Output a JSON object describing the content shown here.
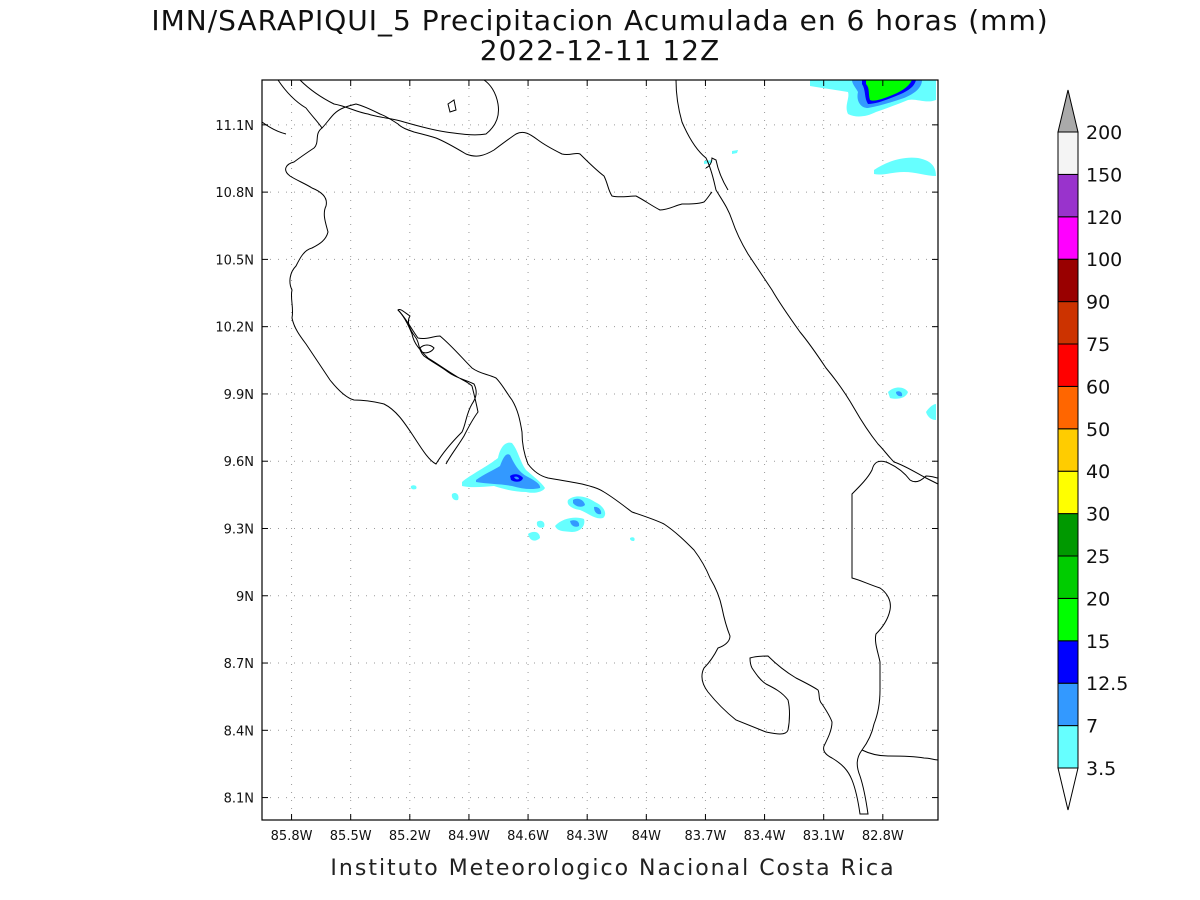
{
  "title": {
    "line1": "IMN/SARAPIQUI_5 Precipitacion Acumulada en 6 horas (mm)",
    "line2": "2022-12-11 12Z"
  },
  "footer": "Instituto Meteorologico Nacional Costa Rica",
  "chart_data": {
    "type": "map-contour",
    "variable": "6-hour accumulated precipitation (mm)",
    "xlim": [
      -85.95,
      -82.52
    ],
    "ylim": [
      8.0,
      11.3
    ],
    "x_ticks": [
      {
        "value": -85.8,
        "label": "85.8W"
      },
      {
        "value": -85.5,
        "label": "85.5W"
      },
      {
        "value": -85.2,
        "label": "85.2W"
      },
      {
        "value": -84.9,
        "label": "84.9W"
      },
      {
        "value": -84.6,
        "label": "84.6W"
      },
      {
        "value": -84.3,
        "label": "84.3W"
      },
      {
        "value": -84.0,
        "label": "84W"
      },
      {
        "value": -83.7,
        "label": "83.7W"
      },
      {
        "value": -83.4,
        "label": "83.4W"
      },
      {
        "value": -83.1,
        "label": "83.1W"
      },
      {
        "value": -82.8,
        "label": "82.8W"
      }
    ],
    "y_ticks": [
      {
        "value": 8.1,
        "label": "8.1N"
      },
      {
        "value": 8.4,
        "label": "8.4N"
      },
      {
        "value": 8.7,
        "label": "8.7N"
      },
      {
        "value": 9.0,
        "label": "9N"
      },
      {
        "value": 9.3,
        "label": "9.3N"
      },
      {
        "value": 9.6,
        "label": "9.6N"
      },
      {
        "value": 9.9,
        "label": "9.9N"
      },
      {
        "value": 10.2,
        "label": "10.2N"
      },
      {
        "value": 10.5,
        "label": "10.5N"
      },
      {
        "value": 10.8,
        "label": "10.8N"
      },
      {
        "value": 11.1,
        "label": "11.1N"
      }
    ],
    "grid": true,
    "colorbar": [
      {
        "label": "3.5",
        "color": "#66ffff"
      },
      {
        "label": "7",
        "color": "#3399ff"
      },
      {
        "label": "12.5",
        "color": "#0000ff"
      },
      {
        "label": "15",
        "color": "#00ff00"
      },
      {
        "label": "20",
        "color": "#00cc00"
      },
      {
        "label": "25",
        "color": "#009900"
      },
      {
        "label": "30",
        "color": "#ffff00"
      },
      {
        "label": "40",
        "color": "#ffcc00"
      },
      {
        "label": "50",
        "color": "#ff6600"
      },
      {
        "label": "60",
        "color": "#ff0000"
      },
      {
        "label": "75",
        "color": "#cc3300"
      },
      {
        "label": "90",
        "color": "#990000"
      },
      {
        "label": "100",
        "color": "#ff00ff"
      },
      {
        "label": "120",
        "color": "#9933cc"
      },
      {
        "label": "150",
        "color": "#f4f4f4"
      },
      {
        "label": "200",
        "color": "#aaaaaa"
      }
    ],
    "precip_areas": [
      {
        "lon": -84.7,
        "lat": 9.52,
        "level": "12.5"
      },
      {
        "lon": -84.35,
        "lat": 9.38,
        "level": "7"
      },
      {
        "lon": -84.38,
        "lat": 9.3,
        "level": "7"
      },
      {
        "lon": -82.75,
        "lat": 11.2,
        "level": "15"
      },
      {
        "lon": -82.7,
        "lat": 10.92,
        "level": "3.5"
      },
      {
        "lon": -82.75,
        "lat": 9.9,
        "level": "7"
      },
      {
        "lon": -82.55,
        "lat": 9.83,
        "level": "3.5"
      }
    ]
  }
}
